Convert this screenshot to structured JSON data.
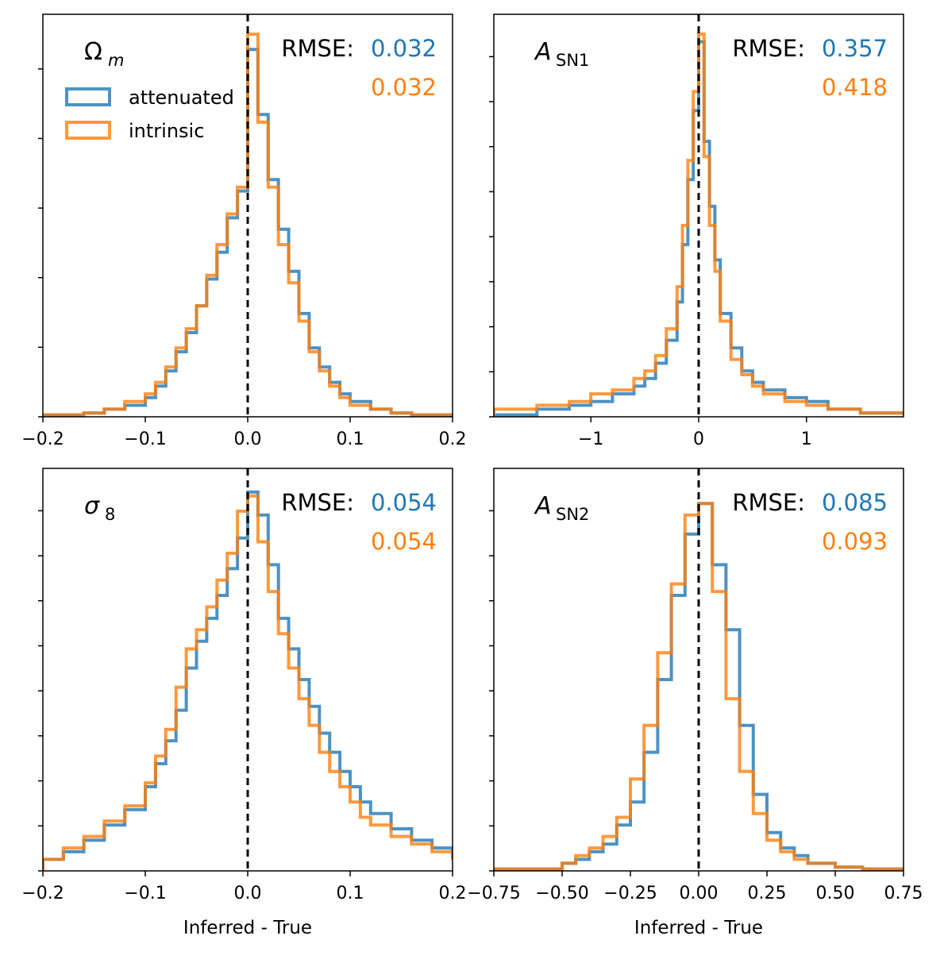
{
  "colors": {
    "attenuated": "#1f77b4",
    "intrinsic": "#ff7f0e",
    "axis": "#000000",
    "ref_line": "#000000"
  },
  "legend": {
    "items": [
      "attenuated",
      "intrinsic"
    ],
    "placement": "upper-left of top-left panel"
  },
  "chart_data": [
    {
      "type": "histogram",
      "panel": "top-left",
      "title": "Ω_m",
      "title_main": "Ω",
      "title_sub": "m",
      "title_sub_style": "italic-subscript",
      "xlabel": "",
      "xlim": [
        -0.2,
        0.2
      ],
      "xticks": [
        -0.2,
        -0.1,
        0.0,
        0.1,
        0.2
      ],
      "xtick_labels": [
        "−0.2",
        "−0.1",
        "0.0",
        "0.1",
        "0.2"
      ],
      "ytick_count": 6,
      "y_hidden": true,
      "rmse_label": "RMSE:",
      "rmse": {
        "attenuated": "0.032",
        "intrinsic": "0.032"
      },
      "series": [
        {
          "name": "attenuated",
          "x": [
            -0.2,
            -0.16,
            -0.14,
            -0.12,
            -0.1,
            -0.09,
            -0.08,
            -0.07,
            -0.06,
            -0.05,
            -0.04,
            -0.03,
            -0.02,
            -0.01,
            0.0,
            0.01,
            0.02,
            0.03,
            0.04,
            0.05,
            0.06,
            0.07,
            0.08,
            0.09,
            0.1,
            0.12,
            0.14,
            0.16,
            0.2
          ],
          "y": [
            0.005,
            0.01,
            0.02,
            0.03,
            0.05,
            0.08,
            0.12,
            0.17,
            0.22,
            0.29,
            0.36,
            0.43,
            0.52,
            0.59,
            0.96,
            0.79,
            0.62,
            0.49,
            0.38,
            0.27,
            0.18,
            0.13,
            0.09,
            0.06,
            0.04,
            0.02,
            0.01,
            0.005,
            0.005
          ]
        },
        {
          "name": "intrinsic",
          "x": [
            -0.2,
            -0.16,
            -0.14,
            -0.12,
            -0.1,
            -0.09,
            -0.08,
            -0.07,
            -0.06,
            -0.05,
            -0.04,
            -0.03,
            -0.02,
            -0.01,
            0.0,
            0.01,
            0.02,
            0.03,
            0.04,
            0.05,
            0.06,
            0.07,
            0.08,
            0.09,
            0.1,
            0.12,
            0.14,
            0.16,
            0.2
          ],
          "y": [
            0.005,
            0.01,
            0.02,
            0.04,
            0.06,
            0.09,
            0.13,
            0.18,
            0.23,
            0.29,
            0.37,
            0.45,
            0.53,
            0.6,
            1.0,
            0.77,
            0.6,
            0.45,
            0.35,
            0.25,
            0.17,
            0.12,
            0.08,
            0.05,
            0.03,
            0.02,
            0.01,
            0.005,
            0.005
          ]
        }
      ],
      "ref_line_x": 0.0
    },
    {
      "type": "histogram",
      "panel": "top-right",
      "title": "A_SN1",
      "title_main": "A",
      "title_sub": "SN1",
      "title_sub_style": "upright-subscript",
      "xlabel": "",
      "xlim": [
        -1.9,
        1.9
      ],
      "xticks": [
        -1,
        0,
        1
      ],
      "xtick_labels": [
        "−1",
        "0",
        "1"
      ],
      "ytick_count": 9,
      "y_hidden": true,
      "rmse_label": "RMSE:",
      "rmse": {
        "attenuated": "0.357",
        "intrinsic": "0.418"
      },
      "series": [
        {
          "name": "attenuated",
          "x": [
            -1.9,
            -1.5,
            -1.2,
            -1.0,
            -0.8,
            -0.6,
            -0.5,
            -0.4,
            -0.3,
            -0.2,
            -0.15,
            -0.1,
            -0.05,
            0.0,
            0.05,
            0.1,
            0.15,
            0.2,
            0.3,
            0.4,
            0.5,
            0.6,
            0.8,
            1.0,
            1.2,
            1.5,
            1.9
          ],
          "y": [
            0.005,
            0.02,
            0.03,
            0.04,
            0.06,
            0.08,
            0.1,
            0.14,
            0.2,
            0.3,
            0.45,
            0.62,
            0.8,
            0.98,
            0.72,
            0.55,
            0.41,
            0.27,
            0.18,
            0.12,
            0.09,
            0.07,
            0.05,
            0.04,
            0.02,
            0.01,
            0.005
          ]
        },
        {
          "name": "intrinsic",
          "x": [
            -1.9,
            -1.5,
            -1.2,
            -1.0,
            -0.8,
            -0.6,
            -0.5,
            -0.4,
            -0.3,
            -0.2,
            -0.15,
            -0.1,
            -0.05,
            0.0,
            0.05,
            0.1,
            0.15,
            0.2,
            0.3,
            0.4,
            0.5,
            0.6,
            0.8,
            1.0,
            1.2,
            1.5,
            1.9
          ],
          "y": [
            0.02,
            0.03,
            0.04,
            0.06,
            0.07,
            0.1,
            0.12,
            0.16,
            0.23,
            0.34,
            0.5,
            0.67,
            0.85,
            1.0,
            0.68,
            0.5,
            0.38,
            0.25,
            0.15,
            0.11,
            0.08,
            0.06,
            0.04,
            0.03,
            0.02,
            0.01,
            0.005
          ]
        }
      ],
      "ref_line_x": 0.0
    },
    {
      "type": "histogram",
      "panel": "bottom-left",
      "title": "σ_8",
      "title_main": "σ",
      "title_sub": "8",
      "title_sub_style": "upright-subscript",
      "xlabel": "Inferred - True",
      "xlim": [
        -0.2,
        0.2
      ],
      "xticks": [
        -0.2,
        -0.1,
        0.0,
        0.1,
        0.2
      ],
      "xtick_labels": [
        "−0.2",
        "−0.1",
        "0.0",
        "0.1",
        "0.2"
      ],
      "ytick_count": 9,
      "y_hidden": true,
      "rmse_label": "RMSE:",
      "rmse": {
        "attenuated": "0.054",
        "intrinsic": "0.054"
      },
      "series": [
        {
          "name": "attenuated",
          "x": [
            -0.2,
            -0.18,
            -0.16,
            -0.14,
            -0.12,
            -0.1,
            -0.09,
            -0.08,
            -0.07,
            -0.06,
            -0.05,
            -0.04,
            -0.03,
            -0.02,
            -0.01,
            0.0,
            0.01,
            0.02,
            0.03,
            0.04,
            0.05,
            0.06,
            0.07,
            0.08,
            0.09,
            0.1,
            0.11,
            0.12,
            0.14,
            0.16,
            0.18,
            0.2
          ],
          "y": [
            0.03,
            0.05,
            0.08,
            0.12,
            0.16,
            0.22,
            0.28,
            0.34,
            0.42,
            0.53,
            0.6,
            0.66,
            0.72,
            0.79,
            0.87,
            0.99,
            0.93,
            0.8,
            0.66,
            0.58,
            0.5,
            0.43,
            0.36,
            0.31,
            0.26,
            0.22,
            0.18,
            0.15,
            0.11,
            0.08,
            0.06,
            0.03
          ]
        },
        {
          "name": "intrinsic",
          "x": [
            -0.2,
            -0.18,
            -0.16,
            -0.14,
            -0.12,
            -0.1,
            -0.09,
            -0.08,
            -0.07,
            -0.06,
            -0.05,
            -0.04,
            -0.03,
            -0.02,
            -0.01,
            0.0,
            0.01,
            0.02,
            0.03,
            0.04,
            0.05,
            0.06,
            0.07,
            0.08,
            0.09,
            0.1,
            0.11,
            0.12,
            0.14,
            0.16,
            0.18,
            0.2
          ],
          "y": [
            0.03,
            0.06,
            0.09,
            0.13,
            0.17,
            0.23,
            0.3,
            0.37,
            0.48,
            0.58,
            0.63,
            0.69,
            0.76,
            0.83,
            0.94,
            0.98,
            0.86,
            0.73,
            0.62,
            0.53,
            0.45,
            0.38,
            0.31,
            0.26,
            0.22,
            0.18,
            0.14,
            0.12,
            0.09,
            0.07,
            0.05,
            0.03
          ]
        }
      ],
      "ref_line_x": 0.0
    },
    {
      "type": "histogram",
      "panel": "bottom-right",
      "title": "A_SN2",
      "title_main": "A",
      "title_sub": "SN2",
      "title_sub_style": "upright-subscript",
      "xlabel": "Inferred - True",
      "xlim": [
        -0.75,
        0.75
      ],
      "xticks": [
        -0.75,
        -0.5,
        -0.25,
        0.0,
        0.25,
        0.5,
        0.75
      ],
      "xtick_labels": [
        "−0.75",
        "−0.50",
        "−0.25",
        "0.00",
        "0.25",
        "0.50",
        "0.75"
      ],
      "ytick_count": 9,
      "y_hidden": true,
      "rmse_label": "RMSE:",
      "rmse": {
        "attenuated": "0.085",
        "intrinsic": "0.093"
      },
      "series": [
        {
          "name": "attenuated",
          "x": [
            -0.75,
            -0.5,
            -0.45,
            -0.4,
            -0.35,
            -0.3,
            -0.25,
            -0.2,
            -0.15,
            -0.1,
            -0.05,
            0.0,
            0.05,
            0.1,
            0.15,
            0.2,
            0.25,
            0.3,
            0.35,
            0.4,
            0.5,
            0.6,
            0.75
          ],
          "y": [
            0.005,
            0.02,
            0.03,
            0.05,
            0.07,
            0.12,
            0.18,
            0.31,
            0.5,
            0.72,
            0.88,
            0.96,
            0.8,
            0.63,
            0.38,
            0.2,
            0.1,
            0.06,
            0.04,
            0.02,
            0.01,
            0.005,
            0.005
          ]
        },
        {
          "name": "intrinsic",
          "x": [
            -0.75,
            -0.5,
            -0.45,
            -0.4,
            -0.35,
            -0.3,
            -0.25,
            -0.2,
            -0.15,
            -0.1,
            -0.05,
            0.0,
            0.05,
            0.1,
            0.15,
            0.2,
            0.25,
            0.3,
            0.35,
            0.4,
            0.5,
            0.6,
            0.75
          ],
          "y": [
            0.005,
            0.02,
            0.04,
            0.06,
            0.09,
            0.14,
            0.24,
            0.38,
            0.57,
            0.75,
            0.93,
            0.96,
            0.73,
            0.45,
            0.26,
            0.15,
            0.08,
            0.05,
            0.03,
            0.02,
            0.01,
            0.005,
            0.005
          ]
        }
      ],
      "ref_line_x": 0.0
    }
  ]
}
